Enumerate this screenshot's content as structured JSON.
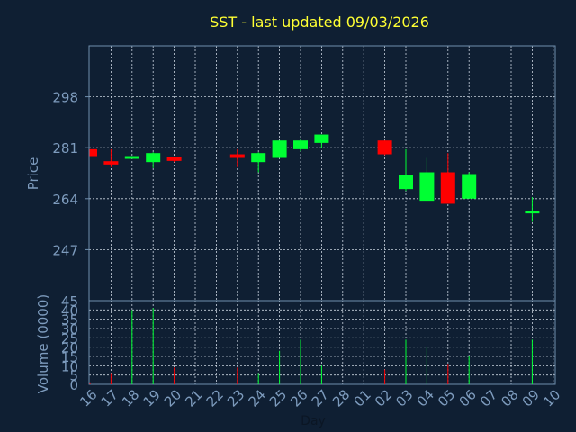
{
  "colors": {
    "background": "#0f1f33",
    "axis": "#6f8fae",
    "grid": "#c9d3de",
    "title": "#ffff33",
    "label": "#7d9bbd",
    "up": "#00ff33",
    "down": "#ff0000"
  },
  "chart_data": [
    {
      "type": "candlestick",
      "title": "SST - last updated 09/03/2026",
      "ylabel": "Price",
      "ylim": [
        230,
        315
      ],
      "yticks": [
        247,
        264,
        281,
        298
      ],
      "grid": true,
      "categories": [
        "16",
        "17",
        "18",
        "19",
        "20",
        "21",
        "22",
        "23",
        "24",
        "25",
        "26",
        "27",
        "28",
        "01",
        "02",
        "03",
        "04",
        "05",
        "06",
        "07",
        "08",
        "09",
        "10"
      ],
      "candles": [
        {
          "x": "16",
          "open": 280.5,
          "close": 278.2,
          "high": 280.5,
          "low": 278.2
        },
        {
          "x": "17",
          "open": 276.5,
          "close": 275.4,
          "high": 280.5,
          "low": 274.5
        },
        {
          "x": "18",
          "open": 277.8,
          "close": 278.2,
          "high": 278.2,
          "low": 277.3
        },
        {
          "x": "19",
          "open": 276.2,
          "close": 279.2,
          "high": 279.5,
          "low": 274.2
        },
        {
          "x": "20",
          "open": 277.9,
          "close": 276.6,
          "high": 277.9,
          "low": 276.2
        },
        {
          "x": "23",
          "open": 278.8,
          "close": 277.6,
          "high": 280.5,
          "low": 274.5
        },
        {
          "x": "24",
          "open": 276.2,
          "close": 279.2,
          "high": 279.5,
          "low": 272.8
        },
        {
          "x": "25",
          "open": 277.6,
          "close": 283.4,
          "high": 283.4,
          "low": 277.6
        },
        {
          "x": "26",
          "open": 280.5,
          "close": 283.4,
          "high": 283.7,
          "low": 279.8
        },
        {
          "x": "27",
          "open": 282.6,
          "close": 285.4,
          "high": 285.4,
          "low": 281.0
        },
        {
          "x": "02",
          "open": 283.4,
          "close": 278.8,
          "high": 283.4,
          "low": 278.5
        },
        {
          "x": "03",
          "open": 267.2,
          "close": 271.8,
          "high": 280.5,
          "low": 266.6
        },
        {
          "x": "04",
          "open": 263.3,
          "close": 272.8,
          "high": 277.6,
          "low": 263.3
        },
        {
          "x": "05",
          "open": 272.8,
          "close": 262.3,
          "high": 279.2,
          "low": 262.3
        },
        {
          "x": "06",
          "open": 264.0,
          "close": 272.2,
          "high": 272.8,
          "low": 264.0
        },
        {
          "x": "09",
          "open": 259.1,
          "close": 260.0,
          "high": 264.5,
          "low": 256.3
        }
      ]
    },
    {
      "type": "bar",
      "ylabel": "Volume (0000)",
      "xlabel": "Day",
      "ylim": [
        0,
        45
      ],
      "yticks": [
        0,
        5,
        10,
        15,
        20,
        25,
        30,
        35,
        40,
        45
      ],
      "grid": true,
      "categories": [
        "16",
        "17",
        "18",
        "19",
        "20",
        "21",
        "22",
        "23",
        "24",
        "25",
        "26",
        "27",
        "28",
        "01",
        "02",
        "03",
        "04",
        "05",
        "06",
        "07",
        "08",
        "09",
        "10"
      ],
      "bars": [
        {
          "x": "16",
          "value": 1,
          "direction": "down"
        },
        {
          "x": "17",
          "value": 6,
          "direction": "down"
        },
        {
          "x": "18",
          "value": 40,
          "direction": "up"
        },
        {
          "x": "19",
          "value": 41,
          "direction": "up"
        },
        {
          "x": "20",
          "value": 9,
          "direction": "down"
        },
        {
          "x": "23",
          "value": 9,
          "direction": "down"
        },
        {
          "x": "24",
          "value": 6,
          "direction": "up"
        },
        {
          "x": "25",
          "value": 18,
          "direction": "up"
        },
        {
          "x": "26",
          "value": 24,
          "direction": "up"
        },
        {
          "x": "27",
          "value": 10,
          "direction": "up"
        },
        {
          "x": "02",
          "value": 8,
          "direction": "down"
        },
        {
          "x": "03",
          "value": 24,
          "direction": "up"
        },
        {
          "x": "04",
          "value": 20,
          "direction": "up"
        },
        {
          "x": "05",
          "value": 11,
          "direction": "down"
        },
        {
          "x": "06",
          "value": 15,
          "direction": "up"
        },
        {
          "x": "09",
          "value": 24,
          "direction": "up"
        }
      ]
    }
  ]
}
